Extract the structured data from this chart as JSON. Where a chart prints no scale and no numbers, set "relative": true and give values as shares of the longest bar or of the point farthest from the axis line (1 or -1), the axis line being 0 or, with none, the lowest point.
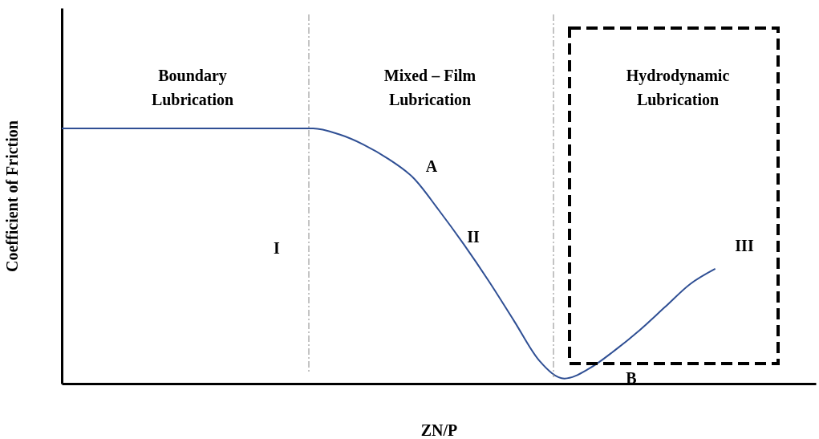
{
  "chart_data": {
    "type": "line",
    "xlabel": "ZN/P",
    "ylabel": "Coefficient of Friction",
    "relative": true,
    "tick_labels": false,
    "categories": [
      null,
      null,
      null,
      null,
      null,
      null,
      null,
      null,
      null,
      null,
      null,
      null,
      null,
      null,
      null,
      null,
      null,
      null,
      null,
      null,
      null,
      null,
      null,
      null,
      null,
      null,
      null,
      null,
      null,
      null,
      null
    ],
    "series": [
      {
        "color": "#2f4f94",
        "values": [
          1,
          1,
          1,
          1,
          1,
          1,
          1,
          1,
          1,
          1,
          1,
          0.978,
          0.937,
          0.88,
          0.805,
          0.68,
          0.545,
          0.4,
          0.245,
          0.09,
          0.02,
          0.06,
          0.13,
          0.21,
          0.3,
          0.39,
          0.45,
          null,
          null,
          null,
          null
        ]
      }
    ],
    "annotations": [
      "Boundary\nLubrication",
      "Mixed – Film\nLubrication",
      "Hydrodynamic\nLubrication",
      "A",
      "II",
      "I",
      "III",
      "B"
    ]
  }
}
